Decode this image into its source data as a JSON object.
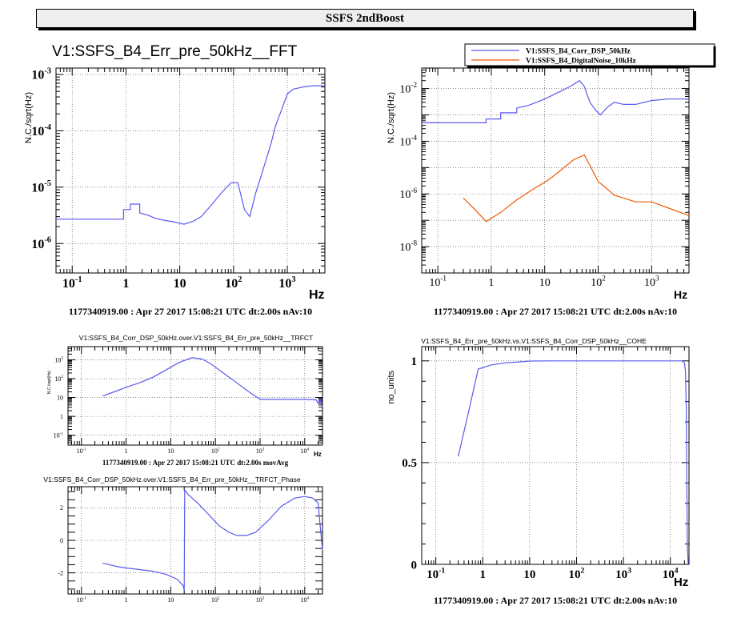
{
  "page_title": "SSFS 2ndBoost",
  "colors": {
    "blue": "#5a5aee",
    "orange": "#ee5a00",
    "frame": "#000000"
  },
  "chart_data": [
    {
      "id": "p1",
      "type": "line",
      "title": "V1:SSFS_B4_Err_pre_50kHz__FFT",
      "xlabel": "Hz",
      "ylabel": "N.C./sqrt(Hz)",
      "xscale": "log",
      "yscale": "log",
      "xlim": [
        0.05,
        5000
      ],
      "ylim": [
        3e-07,
        0.0013
      ],
      "x_ticklabels": [
        "10^-1",
        "1",
        "10",
        "10^2",
        "10^3"
      ],
      "y_ticklabels": [
        "10^-6",
        "10^-5",
        "10^-4",
        "10^-3"
      ],
      "footer": "1177340919.00 : Apr 27 2017 15:08:21 UTC dt:2.00s nAv:10",
      "series": [
        {
          "color": "#5a5aee",
          "x": [
            0.05,
            0.9,
            0.9,
            1.2,
            1.2,
            1.8,
            1.8,
            2.5,
            3.5,
            5,
            8,
            12,
            18,
            25,
            40,
            60,
            90,
            120,
            160,
            200,
            260,
            320,
            400,
            500,
            600,
            800,
            1000,
            1300,
            2000,
            3000,
            5000
          ],
          "y": [
            2.7e-06,
            2.7e-06,
            4e-06,
            4e-06,
            5e-06,
            5e-06,
            3.5e-06,
            3.2e-06,
            2.8e-06,
            2.6e-06,
            2.4e-06,
            2.2e-06,
            2.5e-06,
            3e-06,
            5e-06,
            8e-06,
            1.2e-05,
            1.2e-05,
            4e-06,
            3e-06,
            8e-06,
            1.5e-05,
            3e-05,
            6e-05,
            0.00012,
            0.00025,
            0.00045,
            0.00055,
            0.0006,
            0.00063,
            0.00063
          ]
        }
      ]
    },
    {
      "id": "p2",
      "type": "line",
      "title": "",
      "xlabel": "Hz",
      "ylabel": "N.C./sqrt(Hz)",
      "xscale": "log",
      "yscale": "log",
      "xlim": [
        0.05,
        5000
      ],
      "ylim": [
        1e-09,
        0.06
      ],
      "x_ticklabels": [
        "10^-1",
        "1",
        "10",
        "10^2",
        "10^3"
      ],
      "y_ticklabels": [
        "10^-8",
        "10^-6",
        "10^-4",
        "10^-2"
      ],
      "legend": {
        "placement": "top-right",
        "entries": [
          "V1:SSFS_B4_Corr_DSP_50kHz",
          "V1:SSFS_B4_DigitalNoise_10kHz"
        ]
      },
      "footer": "1177340919.00 : Apr 27 2017 15:08:21 UTC dt:2.00s nAv:10",
      "series": [
        {
          "name": "V1:SSFS_B4_Corr_DSP_50kHz",
          "color": "#5a5aee",
          "x": [
            0.05,
            0.8,
            0.8,
            1.5,
            1.5,
            3,
            3,
            5,
            7,
            10,
            15,
            20,
            30,
            45,
            55,
            70,
            90,
            110,
            150,
            200,
            300,
            500,
            1000,
            2000,
            5000
          ],
          "y": [
            0.0005,
            0.0005,
            0.0007,
            0.0007,
            0.0012,
            0.0012,
            0.0018,
            0.0023,
            0.003,
            0.004,
            0.006,
            0.008,
            0.012,
            0.02,
            0.012,
            0.003,
            0.0015,
            0.001,
            0.002,
            0.003,
            0.0025,
            0.0025,
            0.0035,
            0.004,
            0.004
          ]
        },
        {
          "name": "V1:SSFS_B4_DigitalNoise_10kHz",
          "color": "#ee5a00",
          "x": [
            0.3,
            0.5,
            0.8,
            1.5,
            3,
            6,
            12,
            20,
            35,
            55,
            70,
            100,
            150,
            200,
            300,
            500,
            1000,
            2000,
            5000
          ],
          "y": [
            7e-07,
            2.5e-07,
            9e-08,
            2e-07,
            6e-07,
            1.5e-06,
            3.5e-06,
            8e-06,
            2e-05,
            3e-05,
            1.2e-05,
            3e-06,
            1.5e-06,
            9e-07,
            7e-07,
            5e-07,
            5e-07,
            3e-07,
            1.5e-07
          ]
        }
      ]
    },
    {
      "id": "p3",
      "type": "line",
      "title": "V1:SSFS_B4_Corr_DSP_50kHz.over.V1:SSFS_B4_Err_pre_50kHz__TRFCT",
      "xlabel": "Hz",
      "ylabel": "N.C./sqrt(Hz)",
      "xscale": "log",
      "yscale": "log",
      "xlim": [
        0.05,
        25000
      ],
      "ylim": [
        0.03,
        5000
      ],
      "x_ticklabels": [
        "10^-1",
        "1",
        "10",
        "10^2",
        "10^3",
        "10^4"
      ],
      "y_ticklabels": [
        "10^-1",
        "1",
        "10",
        "10^2",
        "10^3"
      ],
      "footer": "1177340919.00 : Apr 27 2017 15:08:21 UTC dt:2.00s movAvg",
      "series": [
        {
          "color": "#5a5aee",
          "x": [
            0.3,
            0.6,
            1,
            2,
            4,
            8,
            15,
            30,
            50,
            80,
            150,
            300,
            600,
            1000,
            2000,
            5000,
            10000,
            18000,
            20000,
            22000,
            25000
          ],
          "y": [
            12,
            22,
            35,
            60,
            120,
            300,
            700,
            1300,
            1100,
            600,
            200,
            60,
            18,
            8,
            8,
            8,
            8,
            7.5,
            5,
            8,
            3
          ]
        }
      ]
    },
    {
      "id": "p4",
      "type": "line",
      "title": "V1:SSFS_B4_Corr_DSP_50kHz.over.V1:SSFS_B4_Err_pre_50kHz__TRFCT_Phase",
      "xlabel": "Hz",
      "ylabel": "",
      "xscale": "log",
      "yscale": "linear",
      "xlim": [
        0.05,
        25000
      ],
      "ylim": [
        -3.3,
        3.3
      ],
      "x_ticklabels": [
        "10^-1",
        "1",
        "10",
        "10^2",
        "10^3",
        "10^4"
      ],
      "y_ticklabels": [
        "-2",
        "0",
        "2"
      ],
      "footer": "",
      "series": [
        {
          "color": "#5a5aee",
          "x": [
            0.3,
            0.6,
            1,
            2,
            4,
            8,
            14,
            19,
            20,
            20.5,
            25,
            40,
            70,
            120,
            200,
            300,
            500,
            800,
            1500,
            3000,
            6000,
            10000,
            15000,
            20000,
            22000,
            25000
          ],
          "y": [
            -1.4,
            -1.6,
            -1.7,
            -1.8,
            -1.9,
            -2.1,
            -2.4,
            -2.8,
            -3.1,
            3.1,
            2.8,
            2.3,
            1.6,
            0.9,
            0.5,
            0.3,
            0.3,
            0.5,
            1.2,
            2.1,
            2.6,
            2.7,
            2.6,
            2.3,
            1.0,
            -0.6
          ]
        }
      ]
    },
    {
      "id": "p5",
      "type": "line",
      "title": "V1:SSFS_B4_Err_pre_50kHz.vs.V1:SSFS_B4_Corr_DSP_50kHz__COHE",
      "xlabel": "Hz",
      "ylabel": "no_units",
      "xscale": "log",
      "yscale": "linear",
      "xlim": [
        0.05,
        25000
      ],
      "ylim": [
        0,
        1.07
      ],
      "x_ticklabels": [
        "10^-1",
        "1",
        "10",
        "10^2",
        "10^3",
        "10^4"
      ],
      "y_ticklabels": [
        "0",
        "0.5",
        "1"
      ],
      "footer": "1177340919.00 : Apr 27 2017 15:08:21 UTC dt:2.00s nAv:10",
      "series": [
        {
          "color": "#5a5aee",
          "x": [
            0.3,
            0.5,
            0.8,
            1.5,
            3,
            6,
            10,
            30,
            100,
            1000,
            10000,
            18000,
            20000,
            21000,
            22000,
            22500,
            23000,
            24000
          ],
          "y": [
            0.53,
            0.75,
            0.96,
            0.98,
            0.99,
            0.995,
            0.999,
            1,
            1,
            1,
            1,
            1,
            0.99,
            0.95,
            0.75,
            0.4,
            0.1,
            0.0
          ]
        }
      ]
    }
  ]
}
